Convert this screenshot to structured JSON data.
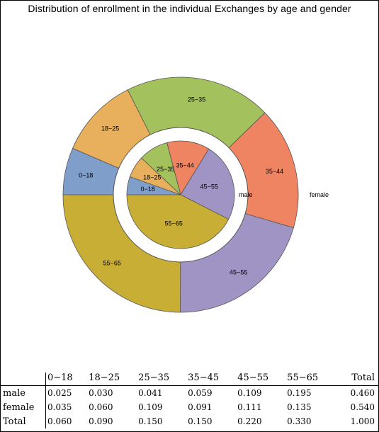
{
  "chart_data": {
    "type": "pie",
    "title": "Distribution of enrollment in the individual Exchanges by age and gender",
    "inner_ring_label": "male",
    "outer_ring_label": "female",
    "colors": {
      "0-18": "#7f9ec9",
      "18-25": "#e8b05c",
      "25-35": "#a3c15c",
      "35-44": "#ee8461",
      "45-55": "#9f94c3",
      "55-65": "#c9ae35"
    },
    "inner": {
      "name": "male",
      "slices": [
        {
          "label": "0-18",
          "value": 0.025
        },
        {
          "label": "18-25",
          "value": 0.03
        },
        {
          "label": "25-35",
          "value": 0.041
        },
        {
          "label": "35-44",
          "value": 0.059
        },
        {
          "label": "45-55",
          "value": 0.109
        },
        {
          "label": "55-65",
          "value": 0.195
        }
      ]
    },
    "outer": {
      "name": "female",
      "slices": [
        {
          "label": "0-18",
          "value": 0.035
        },
        {
          "label": "18-25",
          "value": 0.06
        },
        {
          "label": "25-35",
          "value": 0.109
        },
        {
          "label": "35-44",
          "value": 0.091
        },
        {
          "label": "45-55",
          "value": 0.111
        },
        {
          "label": "55-65",
          "value": 0.135
        }
      ]
    }
  },
  "table": {
    "columns": [
      "0−18",
      "18−25",
      "25−35",
      "35−45",
      "45−55",
      "55−65",
      "Total"
    ],
    "rows": [
      {
        "name": "male",
        "values": [
          "0.025",
          "0.030",
          "0.041",
          "0.059",
          "0.109",
          "0.195",
          "0.460"
        ]
      },
      {
        "name": "female",
        "values": [
          "0.035",
          "0.060",
          "0.109",
          "0.091",
          "0.111",
          "0.135",
          "0.540"
        ]
      },
      {
        "name": "Total",
        "values": [
          "0.060",
          "0.090",
          "0.150",
          "0.150",
          "0.220",
          "0.330",
          "1.000"
        ]
      }
    ]
  }
}
